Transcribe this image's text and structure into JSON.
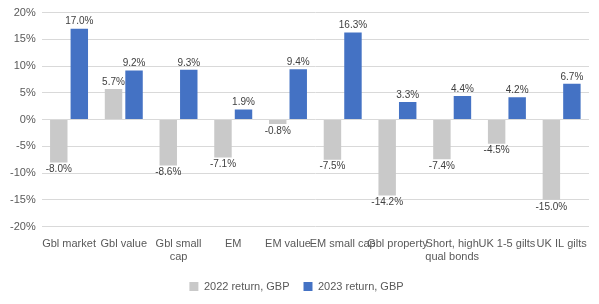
{
  "chart_data": {
    "type": "bar",
    "categories": [
      "Gbl market",
      "Gbl value",
      "Gbl small cap",
      "EM",
      "EM value",
      "EM small cap",
      "Gbl property",
      "Short, high qual bonds",
      "UK 1-5 gilts",
      "UK IL gilts"
    ],
    "series": [
      {
        "name": "2022 return, GBP",
        "color": "#c9c9c9",
        "values": [
          -8.0,
          5.7,
          -8.6,
          -7.1,
          -0.8,
          -7.5,
          -14.2,
          -7.4,
          -4.5,
          -15.0
        ],
        "value_labels": [
          "-8.0%",
          "5.7%",
          "-8.6%",
          "-7.1%",
          "-0.8%",
          "-7.5%",
          "-14.2%",
          "-7.4%",
          "-4.5%",
          "-15.0%"
        ]
      },
      {
        "name": "2023 return, GBP",
        "color": "#4472c4",
        "values": [
          17.0,
          9.2,
          9.3,
          1.9,
          9.4,
          16.3,
          3.3,
          4.4,
          4.2,
          6.7
        ],
        "value_labels": [
          "17.0%",
          "9.2%",
          "9.3%",
          "1.9%",
          "9.4%",
          "16.3%",
          "3.3%",
          "4.4%",
          "4.2%",
          "6.7%"
        ]
      }
    ],
    "ylim": [
      -20,
      20
    ],
    "yticks": [
      {
        "value": -20,
        "label": "-20%"
      },
      {
        "value": -15,
        "label": "-15%"
      },
      {
        "value": -10,
        "label": "-10%"
      },
      {
        "value": -5,
        "label": "-5%"
      },
      {
        "value": 0,
        "label": "0%"
      },
      {
        "value": 5,
        "label": "5%"
      },
      {
        "value": 10,
        "label": "10%"
      },
      {
        "value": 15,
        "label": "15%"
      },
      {
        "value": 20,
        "label": "20%"
      }
    ],
    "grid": true,
    "legend": "bottom",
    "data_labels": true
  }
}
